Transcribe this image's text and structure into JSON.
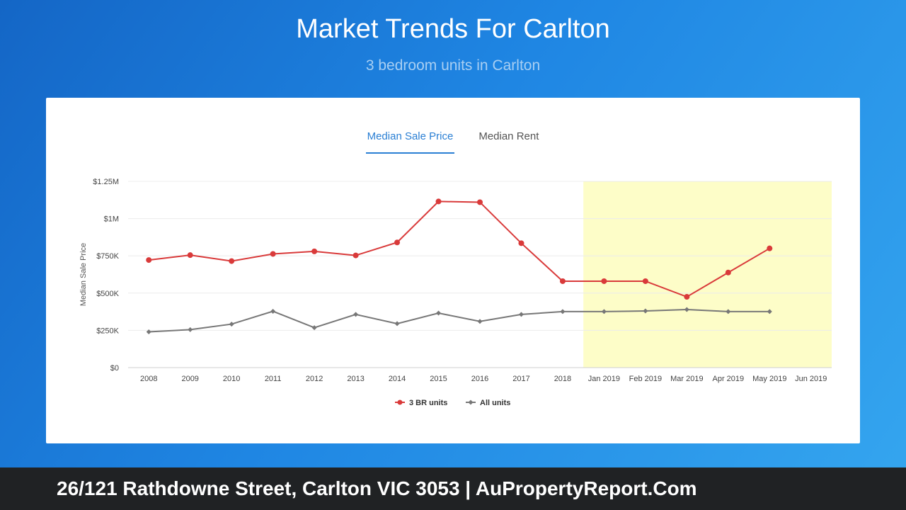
{
  "header": {
    "title": "Market Trends For Carlton",
    "subtitle": "3 bedroom units in Carlton"
  },
  "tabs": [
    {
      "label": "Median Sale Price",
      "active": true
    },
    {
      "label": "Median Rent",
      "active": false
    }
  ],
  "chart_data": {
    "type": "line",
    "ylabel": "Median Sale Price",
    "categories": [
      "2008",
      "2009",
      "2010",
      "2011",
      "2012",
      "2013",
      "2014",
      "2015",
      "2016",
      "2017",
      "2018",
      "Jan 2019",
      "Feb 2019",
      "Mar 2019",
      "Apr 2019",
      "May 2019",
      "Jun 2019"
    ],
    "ylim": [
      0,
      1250000
    ],
    "yticks": [
      {
        "value": 0,
        "label": "$0"
      },
      {
        "value": 250000,
        "label": "$250K"
      },
      {
        "value": 500000,
        "label": "$500K"
      },
      {
        "value": 750000,
        "label": "$750K"
      },
      {
        "value": 1000000,
        "label": "$1M"
      },
      {
        "value": 1250000,
        "label": "$1.25M"
      }
    ],
    "highlight_start_category": "Jan 2019",
    "highlight_color": "#fdfdc8",
    "grid": true,
    "legend_position": "bottom",
    "series": [
      {
        "name": "3 BR units",
        "color": "#d93a3a",
        "marker": "circle",
        "values": [
          722000,
          755000,
          715000,
          763000,
          780000,
          753000,
          840000,
          1115000,
          1110000,
          835000,
          580000,
          580000,
          580000,
          475000,
          638000,
          800000,
          null
        ]
      },
      {
        "name": "All units",
        "color": "#777777",
        "marker": "diamond",
        "values": [
          240000,
          255000,
          292000,
          378000,
          268000,
          357000,
          295000,
          366000,
          310000,
          357000,
          376000,
          376000,
          380000,
          390000,
          376000,
          376000,
          null
        ]
      }
    ]
  },
  "footer": {
    "text": "26/121 Rathdowne Street, Carlton VIC 3053 | AuPropertyReport.Com"
  }
}
